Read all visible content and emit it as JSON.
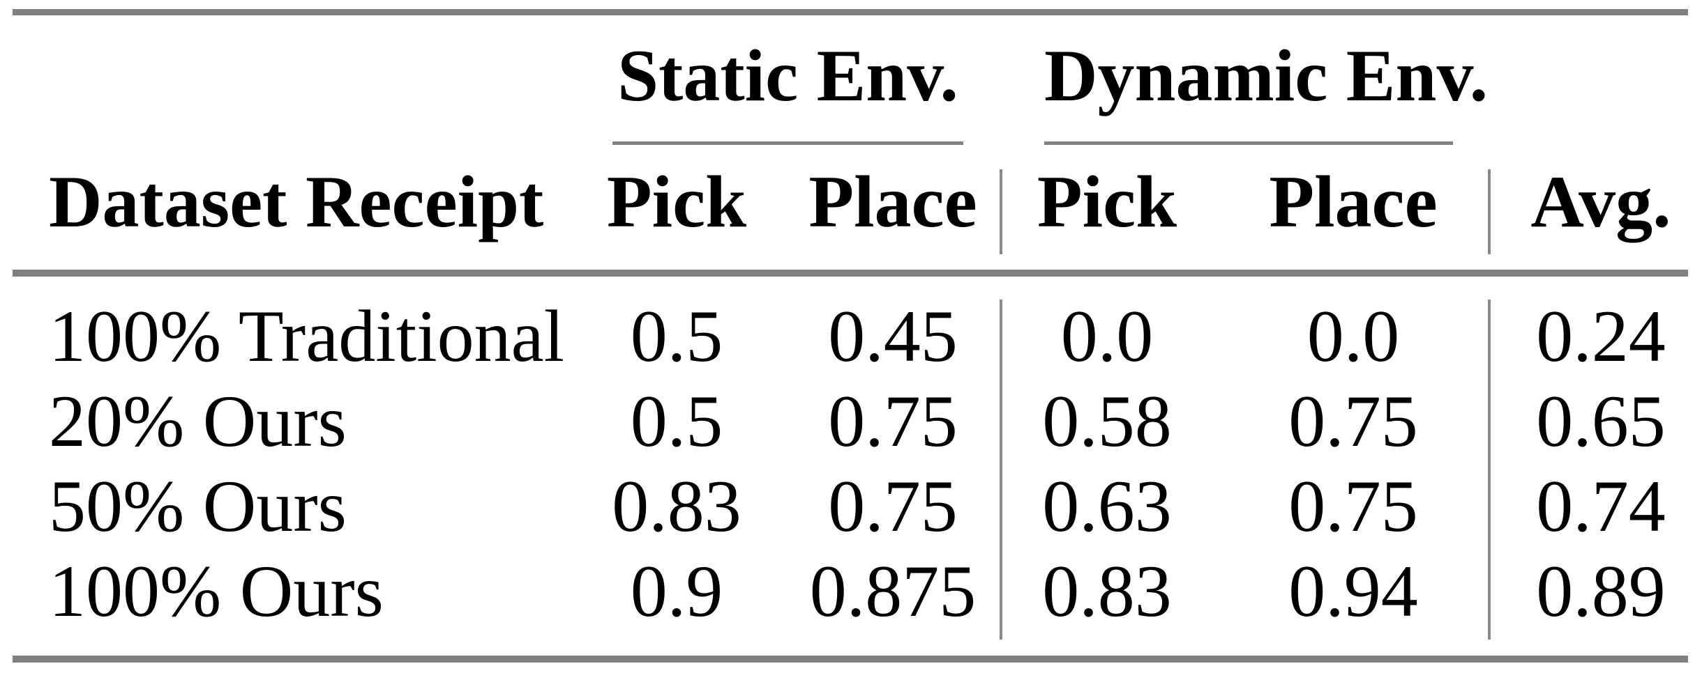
{
  "table": {
    "group_headers": [
      {
        "label": "Static Env."
      },
      {
        "label": "Dynamic Env."
      }
    ],
    "column_headers": {
      "row_label": "Dataset Receipt",
      "static_pick": "Pick",
      "static_place": "Place",
      "dynamic_pick": "Pick",
      "dynamic_place": "Place",
      "avg": "Avg."
    },
    "rows": [
      {
        "label": "100% Traditional",
        "static_pick": "0.5",
        "static_place": "0.45",
        "dynamic_pick": "0.0",
        "dynamic_place": "0.0",
        "avg": "0.24"
      },
      {
        "label": "20% Ours",
        "static_pick": "0.5",
        "static_place": "0.75",
        "dynamic_pick": "0.58",
        "dynamic_place": "0.75",
        "avg": "0.65"
      },
      {
        "label": "50% Ours",
        "static_pick": "0.83",
        "static_place": "0.75",
        "dynamic_pick": "0.63",
        "dynamic_place": "0.75",
        "avg": "0.74"
      },
      {
        "label": "100% Ours",
        "static_pick": "0.9",
        "static_place": "0.875",
        "dynamic_pick": "0.83",
        "dynamic_place": "0.94",
        "avg": "0.89"
      }
    ]
  },
  "colors": {
    "rule_gray": "#808080",
    "text": "#000000",
    "background": "#ffffff"
  },
  "chart_data": {
    "type": "table",
    "columns": [
      "Dataset Receipt",
      "Static Env. Pick",
      "Static Env. Place",
      "Dynamic Env. Pick",
      "Dynamic Env. Place",
      "Avg."
    ],
    "rows": [
      [
        "100% Traditional",
        0.5,
        0.45,
        0.0,
        0.0,
        0.24
      ],
      [
        "20% Ours",
        0.5,
        0.75,
        0.58,
        0.75,
        0.65
      ],
      [
        "50% Ours",
        0.83,
        0.75,
        0.63,
        0.75,
        0.74
      ],
      [
        "100% Ours",
        0.9,
        0.875,
        0.83,
        0.94,
        0.89
      ]
    ]
  }
}
